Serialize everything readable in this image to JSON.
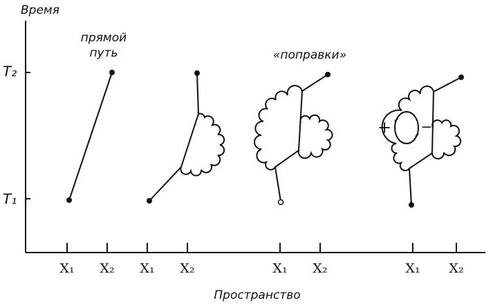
{
  "axes": {
    "y_label": "Время",
    "x_label": "Пространство",
    "y_ticks": [
      "T₂",
      "T₁"
    ]
  },
  "diagrams": [
    {
      "label": [
        "прямой",
        "путь"
      ],
      "x_ticks": [
        "X₁",
        "X₂"
      ]
    },
    {
      "x_ticks": [
        "X₁",
        "X₂"
      ]
    },
    {
      "label": [
        "«поправки»"
      ],
      "x_ticks": [
        "X₁",
        "X₂"
      ]
    },
    {
      "x_ticks": [
        "X₁",
        "X₂"
      ],
      "signs": [
        "+",
        "−"
      ]
    }
  ]
}
